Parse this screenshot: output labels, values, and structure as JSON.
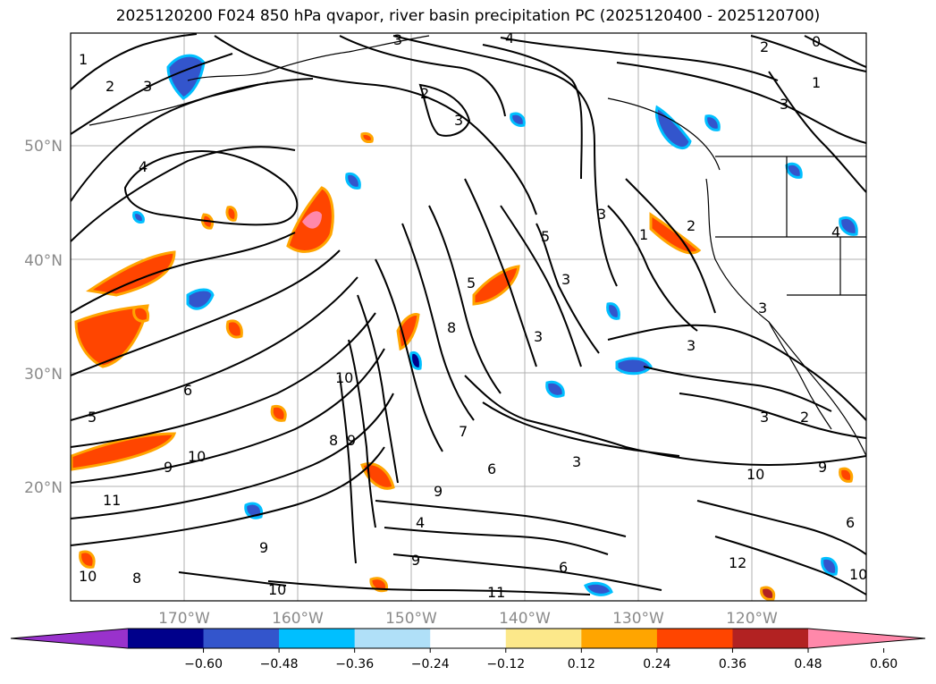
{
  "title": "2025120200 F024 850 hPa qvapor, river basin precipitation PC (2025120400 - 2025120700)",
  "latitude_labels": [
    "50°N",
    "40°N",
    "30°N",
    "20°N"
  ],
  "longitude_labels": [
    "170°W",
    "160°W",
    "150°W",
    "140°W",
    "130°W",
    "120°W"
  ],
  "contour_labels": [
    "0",
    "1",
    "2",
    "3",
    "4",
    "5",
    "6",
    "7",
    "8",
    "9",
    "10",
    "11",
    "12"
  ],
  "colorbar": {
    "ticks": [
      "−0.60",
      "−0.48",
      "−0.36",
      "−0.24",
      "−0.12",
      "0.12",
      "0.24",
      "0.36",
      "0.48",
      "0.60"
    ],
    "colors": [
      "#9932cc",
      "#00008b",
      "#3355cc",
      "#00bfff",
      "#b0e0f8",
      "#ffffff",
      "#fce88a",
      "#ffa500",
      "#ff4500",
      "#b22222",
      "#ff88aa"
    ]
  },
  "colors": {
    "contour": "#000000",
    "grid": "#b0b0b0",
    "coast": "#000000"
  }
}
